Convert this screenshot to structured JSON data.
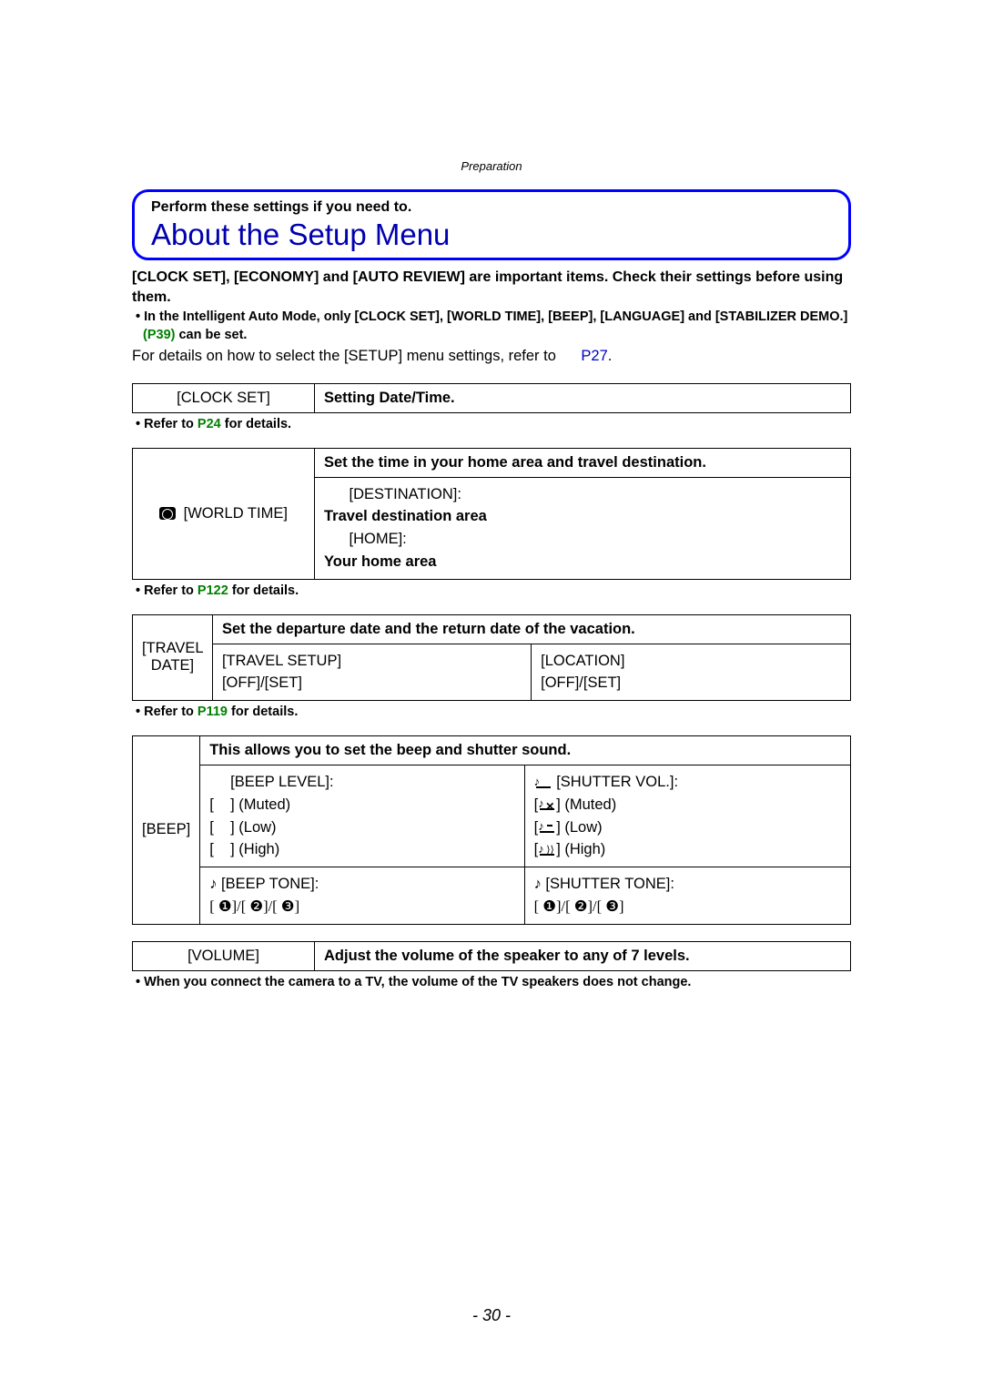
{
  "header": {
    "section_label": "Preparation"
  },
  "title_box": {
    "subtitle": "Perform these settings if you need to.",
    "main_title": "About the Setup Menu"
  },
  "intro": {
    "bold_line": "[CLOCK SET], [ECONOMY] and [AUTO REVIEW] are important items. Check their settings before using them.",
    "bullet_pre": "• In the Intelligent Auto Mode, only [CLOCK SET], [WORLD TIME], [BEEP], [LANGUAGE] and [STABILIZER DEMO.]",
    "bullet_link": "(P39)",
    "bullet_post": " can be set.",
    "body_pre": "For details on how to select the [SETUP] menu settings, refer to ",
    "body_link": "P27",
    "body_post": "."
  },
  "clock_set": {
    "label": "[CLOCK SET]",
    "desc": "Setting Date/Time.",
    "refer_pre": "• Refer to ",
    "refer_link": "P24",
    "refer_post": " for details."
  },
  "world_time": {
    "label": "[WORLD TIME]",
    "header": "Set the time in your home area and travel destination.",
    "dest_label": "[DESTINATION]:",
    "dest_desc": "Travel destination area",
    "home_label": "[HOME]:",
    "home_desc": "Your home area",
    "refer_pre": "• Refer to ",
    "refer_link": "P122",
    "refer_post": " for details."
  },
  "travel_date": {
    "label": "[TRAVEL DATE]",
    "header": "Set the departure date and the return date of the vacation.",
    "col1_label": "[TRAVEL SETUP]",
    "col1_opts": "[OFF]/[SET]",
    "col2_label": "[LOCATION]",
    "col2_opts": "[OFF]/[SET]",
    "refer_pre": "• Refer to ",
    "refer_link": "P119",
    "refer_post": " for details."
  },
  "beep": {
    "label": "[BEEP]",
    "header": "This allows you to set the beep and shutter sound.",
    "beep_level_label": "[BEEP LEVEL]:",
    "beep_muted": "[    ] (Muted)",
    "beep_low": "[    ] (Low)",
    "beep_high": "[    ] (High)",
    "shutter_vol_label": "[SHUTTER VOL.]:",
    "shutter_muted": "] (Muted)",
    "shutter_low": "] (Low)",
    "shutter_high": "] (High)",
    "beep_tone_label": " [BEEP TONE]:",
    "beep_tone_opts": "[ ❶]/[ ❷]/[ ❸]",
    "shutter_tone_label": " [SHUTTER TONE]:",
    "shutter_tone_opts": "[ ❶]/[ ❷]/[ ❸]"
  },
  "volume": {
    "label": "[VOLUME]",
    "desc": "Adjust the volume of the speaker to any of 7 levels.",
    "note": "• When you connect the camera to a TV, the volume of the TV speakers does not change."
  },
  "page_number": "- 30 -"
}
